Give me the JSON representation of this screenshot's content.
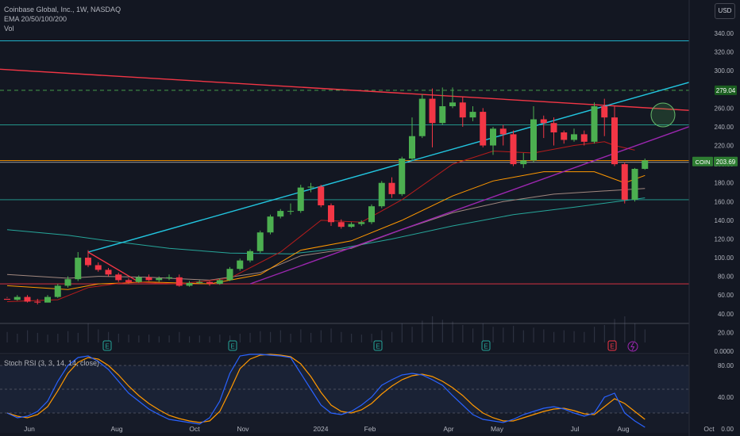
{
  "header": {
    "symbol_line": "Coinbase Global, Inc., 1W, NASDAQ",
    "ema_label": "EMA 20/50/100/200",
    "vol_label": "Vol",
    "currency_button": "USD"
  },
  "rsi_header": "Stoch RSI (3, 3, 14, 14, close)",
  "colors": {
    "background": "#131722",
    "up": "#4caf50",
    "down": "#f23645",
    "teal_line": "#26a69a",
    "cyan_line": "#22c6e0",
    "purple_line": "#9c27b0",
    "red_trend": "#f23645",
    "orange_ema": "#ff9800",
    "rsi_k": "#2962ff",
    "rsi_d": "#ff9800"
  },
  "chart_data": [
    {
      "type": "candlestick",
      "title": "Coinbase Global, Inc., 1W, NASDAQ",
      "ticker": "COIN",
      "last_price_label": "203.69",
      "level_label": "279.04",
      "x_ticks": [
        "Jun",
        "Aug",
        "Oct",
        "Nov",
        "2024",
        "Feb",
        "Apr",
        "May",
        "Jul",
        "Aug",
        "Oct"
      ],
      "y_ticks": [
        "340.00",
        "320.00",
        "300.00",
        "280.00",
        "260.00",
        "240.00",
        "220.00",
        "200.00",
        "180.00",
        "160.00",
        "140.00",
        "120.00",
        "100.00",
        "80.00",
        "60.00",
        "40.00",
        "20.00",
        "0.0000"
      ],
      "ylim": [
        0,
        352
      ],
      "candles": [
        [
          56,
          55,
          57,
          58
        ],
        [
          55,
          58,
          54,
          60
        ],
        [
          58,
          53,
          52,
          60
        ],
        [
          53,
          52,
          50,
          56
        ],
        [
          52,
          58,
          52,
          60
        ],
        [
          58,
          70,
          57,
          72
        ],
        [
          70,
          77,
          68,
          80
        ],
        [
          77,
          100,
          75,
          106
        ],
        [
          100,
          92,
          90,
          108
        ],
        [
          92,
          87,
          85,
          95
        ],
        [
          87,
          82,
          80,
          89
        ],
        [
          82,
          76,
          74,
          84
        ],
        [
          76,
          74,
          72,
          78
        ],
        [
          74,
          79,
          73,
          81
        ],
        [
          79,
          76,
          75,
          82
        ],
        [
          76,
          78,
          74,
          80
        ],
        [
          78,
          79,
          76,
          82
        ],
        [
          79,
          70,
          69,
          82
        ],
        [
          70,
          73,
          69,
          75
        ],
        [
          73,
          74,
          72,
          76
        ],
        [
          74,
          72,
          70,
          75
        ],
        [
          72,
          76,
          71,
          78
        ],
        [
          76,
          88,
          75,
          90
        ],
        [
          88,
          97,
          86,
          99
        ],
        [
          97,
          107,
          95,
          109
        ],
        [
          107,
          127,
          105,
          129
        ],
        [
          127,
          144,
          125,
          146
        ],
        [
          144,
          150,
          142,
          152
        ],
        [
          150,
          150,
          146,
          158
        ],
        [
          150,
          175,
          148,
          178
        ],
        [
          175,
          176,
          170,
          180
        ],
        [
          176,
          156,
          154,
          178
        ],
        [
          156,
          138,
          134,
          158
        ],
        [
          138,
          133,
          131,
          141
        ],
        [
          133,
          136,
          132,
          138
        ],
        [
          136,
          138,
          134,
          140
        ],
        [
          138,
          155,
          136,
          157
        ],
        [
          155,
          180,
          153,
          182
        ],
        [
          180,
          168,
          164,
          186
        ],
        [
          168,
          206,
          166,
          208
        ],
        [
          206,
          230,
          204,
          250
        ],
        [
          230,
          270,
          228,
          275
        ],
        [
          270,
          244,
          218,
          281
        ],
        [
          244,
          262,
          242,
          282
        ],
        [
          262,
          266,
          260,
          282
        ],
        [
          266,
          250,
          240,
          272
        ],
        [
          250,
          256,
          246,
          262
        ],
        [
          256,
          220,
          218,
          260
        ],
        [
          220,
          238,
          210,
          240
        ],
        [
          238,
          232,
          220,
          242
        ],
        [
          232,
          200,
          198,
          236
        ],
        [
          200,
          204,
          196,
          212
        ],
        [
          204,
          248,
          202,
          262
        ],
        [
          248,
          244,
          228,
          252
        ],
        [
          244,
          234,
          220,
          250
        ],
        [
          234,
          226,
          222,
          236
        ],
        [
          226,
          232,
          224,
          238
        ],
        [
          232,
          224,
          220,
          236
        ],
        [
          224,
          262,
          222,
          266
        ],
        [
          262,
          250,
          230,
          270
        ],
        [
          250,
          200,
          198,
          262
        ],
        [
          200,
          162,
          158,
          202
        ],
        [
          162,
          195,
          160,
          196
        ],
        [
          195,
          204,
          194,
          206
        ]
      ],
      "volume": [
        12,
        10,
        14,
        11,
        9,
        10,
        13,
        11,
        22,
        15,
        12,
        10,
        9,
        8,
        9,
        7,
        8,
        12,
        7,
        8,
        7,
        9,
        8,
        10,
        11,
        13,
        12,
        14,
        10,
        15,
        11,
        14,
        16,
        12,
        10,
        9,
        10,
        14,
        12,
        22,
        18,
        25,
        30,
        26,
        24,
        20,
        16,
        22,
        18,
        17,
        19,
        14,
        17,
        15,
        12,
        14,
        13,
        12,
        18,
        20,
        27,
        30,
        22,
        15
      ],
      "overlays": {
        "ema20": [
          [
            0,
            53
          ],
          [
            5,
            55
          ],
          [
            8,
            68
          ],
          [
            12,
            74
          ],
          [
            17,
            72
          ],
          [
            22,
            78
          ],
          [
            27,
            106
          ],
          [
            31,
            140
          ],
          [
            35,
            138
          ],
          [
            39,
            162
          ],
          [
            44,
            200
          ],
          [
            48,
            214
          ],
          [
            52,
            212
          ],
          [
            56,
            220
          ],
          [
            59,
            224
          ],
          [
            60,
            220
          ],
          [
            62,
            215
          ]
        ],
        "ema50": [
          [
            0,
            70
          ],
          [
            6,
            66
          ],
          [
            9,
            72
          ],
          [
            14,
            74
          ],
          [
            20,
            72
          ],
          [
            25,
            82
          ],
          [
            29,
            108
          ],
          [
            34,
            118
          ],
          [
            39,
            140
          ],
          [
            44,
            166
          ],
          [
            48,
            182
          ],
          [
            53,
            192
          ],
          [
            58,
            192
          ],
          [
            61,
            180
          ],
          [
            63,
            188
          ]
        ],
        "ema100": [
          [
            0,
            82
          ],
          [
            6,
            78
          ],
          [
            9,
            80
          ],
          [
            14,
            79
          ],
          [
            20,
            76
          ],
          [
            25,
            84
          ],
          [
            29,
            102
          ],
          [
            34,
            110
          ],
          [
            39,
            130
          ],
          [
            44,
            148
          ],
          [
            49,
            160
          ],
          [
            54,
            168
          ],
          [
            60,
            172
          ],
          [
            63,
            174
          ]
        ],
        "ema200": [
          [
            0,
            130
          ],
          [
            6,
            124
          ],
          [
            10,
            118
          ],
          [
            16,
            110
          ],
          [
            22,
            105
          ],
          [
            28,
            104
          ],
          [
            33,
            110
          ],
          [
            38,
            120
          ],
          [
            44,
            134
          ],
          [
            50,
            146
          ],
          [
            56,
            154
          ],
          [
            63,
            164
          ]
        ],
        "cyan_trend": [
          [
            8,
            106
          ],
          [
            76,
            314
          ]
        ],
        "red_trend_line": [
          [
            -6,
            305
          ],
          [
            76,
            252
          ]
        ],
        "purple_trend": [
          [
            24,
            72
          ],
          [
            73,
            262
          ]
        ],
        "horizontal_levels": [
          332,
          279.04,
          242,
          204,
          162,
          72
        ]
      }
    },
    {
      "type": "line",
      "title": "Stoch RSI (3, 3, 14, 14, close)",
      "y_ticks": [
        "80.00",
        "40.00",
        "0.00"
      ],
      "ylim": [
        -5,
        100
      ],
      "series": [
        {
          "values": [
            20,
            14,
            16,
            22,
            35,
            60,
            80,
            90,
            92,
            85,
            75,
            60,
            45,
            35,
            25,
            18,
            12,
            10,
            8,
            6,
            14,
            35,
            70,
            92,
            94,
            94,
            93,
            92,
            90,
            70,
            50,
            30,
            20,
            18,
            22,
            30,
            40,
            55,
            62,
            68,
            70,
            68,
            62,
            55,
            42,
            30,
            18,
            12,
            10,
            8,
            12,
            18,
            22,
            26,
            28,
            25,
            20,
            16,
            20,
            40,
            45,
            20,
            10,
            2
          ]
        },
        {
          "values": [
            20,
            16,
            14,
            18,
            28,
            48,
            70,
            84,
            90,
            88,
            80,
            68,
            54,
            42,
            32,
            24,
            17,
            13,
            10,
            8,
            10,
            22,
            48,
            76,
            88,
            93,
            94,
            93,
            91,
            82,
            66,
            46,
            30,
            22,
            20,
            24,
            32,
            44,
            54,
            62,
            67,
            69,
            66,
            60,
            52,
            42,
            30,
            20,
            14,
            10,
            10,
            14,
            18,
            22,
            25,
            26,
            23,
            19,
            18,
            28,
            38,
            32,
            22,
            12
          ]
        }
      ]
    }
  ]
}
